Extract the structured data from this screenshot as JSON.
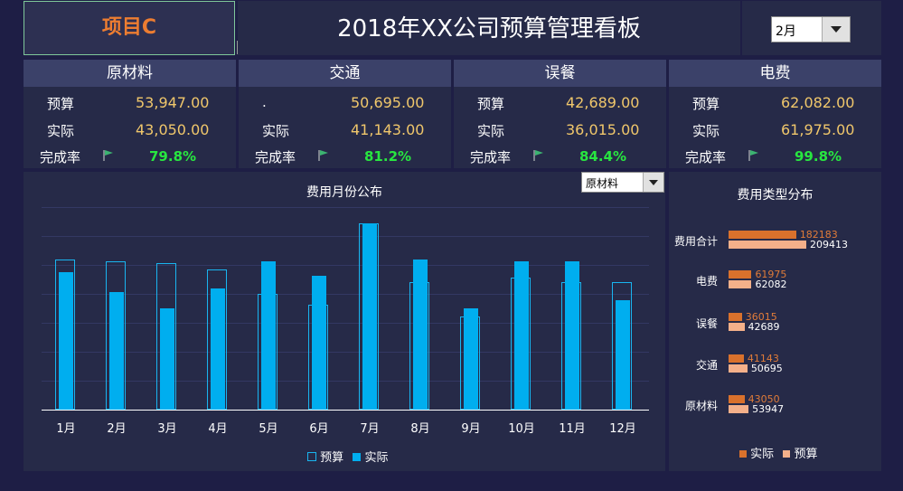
{
  "project_cell": {
    "text": "项目C"
  },
  "title": "2018年XX公司预算管理看板",
  "month_select": {
    "value": "2月"
  },
  "cards": [
    {
      "name": "原材料",
      "budget_label": "预算",
      "budget": "53,947.00",
      "actual_label": "实际",
      "actual": "43,050.00",
      "rate_label": "完成率",
      "rate": "79.8%"
    },
    {
      "name": "交通",
      "budget_label": ".",
      "budget": "50,695.00",
      "actual_label": "实际",
      "actual": "41,143.00",
      "rate_label": "完成率",
      "rate": "81.2%"
    },
    {
      "name": "误餐",
      "budget_label": "预算",
      "budget": "42,689.00",
      "actual_label": "实际",
      "actual": "36,015.00",
      "rate_label": "完成率",
      "rate": "84.4%"
    },
    {
      "name": "电费",
      "budget_label": "预算",
      "budget": "62,082.00",
      "actual_label": "实际",
      "actual": "61,975.00",
      "rate_label": "完成率",
      "rate": "99.8%"
    }
  ],
  "category_select": {
    "value": "原材料"
  },
  "chart_data": [
    {
      "type": "bar",
      "title": "费用月份公布",
      "categories": [
        "1月",
        "2月",
        "3月",
        "4月",
        "5月",
        "6月",
        "7月",
        "8月",
        "9月",
        "10月",
        "11月",
        "12月"
      ],
      "series": [
        {
          "name": "预算",
          "values": [
            7400,
            7300,
            7250,
            6900,
            5700,
            5200,
            9200,
            6300,
            4600,
            6500,
            6300,
            6300
          ]
        },
        {
          "name": "实际",
          "values": [
            6800,
            5800,
            5000,
            6000,
            7300,
            6600,
            9200,
            7400,
            5000,
            7300,
            7300,
            5400
          ]
        }
      ],
      "ylim": [
        0,
        10000
      ],
      "legend": "bottom",
      "grid": true
    },
    {
      "type": "bar",
      "orientation": "horizontal",
      "title": "费用类型分布",
      "categories": [
        "费用合计",
        "电费",
        "误餐",
        "交通",
        "原材料"
      ],
      "series": [
        {
          "name": "实际",
          "values": [
            182183,
            61975,
            36015,
            41143,
            43050
          ]
        },
        {
          "name": "预算",
          "values": [
            209413,
            62082,
            42689,
            50695,
            53947
          ]
        }
      ],
      "legend": "bottom"
    }
  ],
  "colors": {
    "budget_outline": "#19b5f0",
    "actual_fill": "#00aeef",
    "actual_bar": "#d9712c",
    "budget_bar": "#f4b08a",
    "rate_green": "#28e640",
    "value_gold": "#f0c76b"
  },
  "icons": {
    "flag": "flag-icon",
    "dropdown": "chevron-down-icon"
  }
}
